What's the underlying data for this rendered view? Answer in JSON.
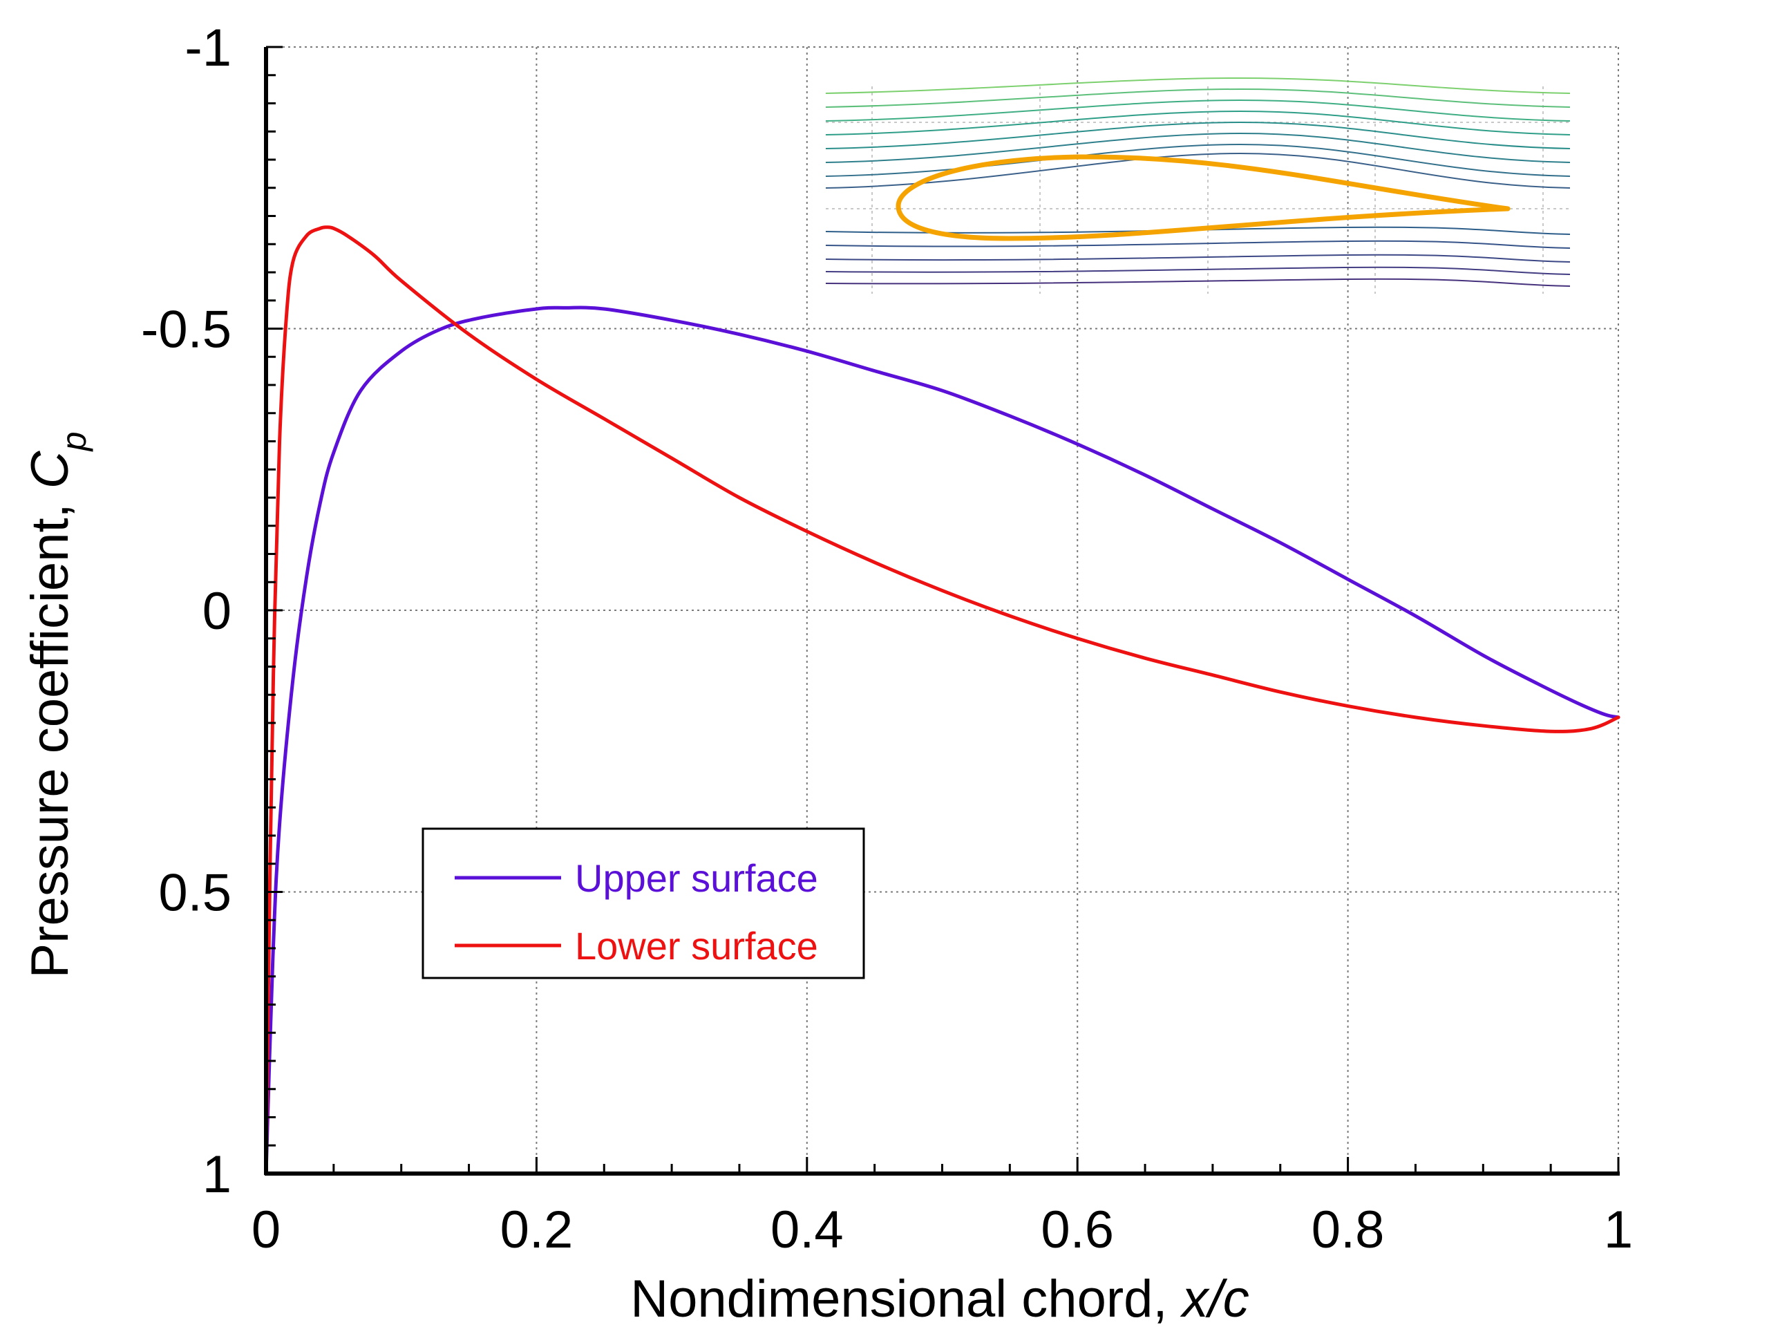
{
  "chart_data": {
    "type": "line",
    "title": "",
    "xlabel_main": "Nondimensional chord, ",
    "xlabel_italic": "x/c",
    "ylabel_main": "Pressure coefficient, ",
    "ylabel_symbol": "C",
    "ylabel_subscript": "p",
    "xlim": [
      0,
      1
    ],
    "ylim": [
      1,
      -1
    ],
    "y_axis_inverted": true,
    "grid": true,
    "legend_position": "lower-left",
    "x_ticks": [
      0,
      0.2,
      0.4,
      0.6,
      0.8,
      1
    ],
    "x_tick_labels": [
      "0",
      "0.2",
      "0.4",
      "0.6",
      "0.8",
      "1"
    ],
    "y_ticks": [
      -1,
      -0.5,
      0,
      0.5,
      1
    ],
    "y_tick_labels": [
      "-1",
      "-0.5",
      "0",
      "0.5",
      "1"
    ],
    "series": [
      {
        "name": "Upper surface",
        "color": "#5b10d8",
        "x": [
          0,
          0.005,
          0.01,
          0.02,
          0.03,
          0.04,
          0.05,
          0.07,
          0.1,
          0.13,
          0.16,
          0.2,
          0.22,
          0.25,
          0.3,
          0.35,
          0.4,
          0.45,
          0.5,
          0.55,
          0.6,
          0.65,
          0.7,
          0.75,
          0.8,
          0.85,
          0.9,
          0.94,
          0.97,
          0.99,
          1.0
        ],
        "y": [
          1.0,
          0.62,
          0.38,
          0.12,
          -0.06,
          -0.19,
          -0.28,
          -0.39,
          -0.46,
          -0.5,
          -0.52,
          -0.535,
          -0.537,
          -0.535,
          -0.515,
          -0.49,
          -0.46,
          -0.425,
          -0.39,
          -0.345,
          -0.295,
          -0.24,
          -0.18,
          -0.12,
          -0.055,
          0.01,
          0.08,
          0.13,
          0.165,
          0.185,
          0.19
        ]
      },
      {
        "name": "Lower surface",
        "color": "#ee1111",
        "x": [
          0,
          0.003,
          0.006,
          0.01,
          0.015,
          0.02,
          0.03,
          0.04,
          0.045,
          0.05,
          0.06,
          0.08,
          0.1,
          0.15,
          0.2,
          0.25,
          0.3,
          0.35,
          0.4,
          0.45,
          0.5,
          0.55,
          0.6,
          0.65,
          0.7,
          0.75,
          0.8,
          0.85,
          0.9,
          0.95,
          0.98,
          1.0
        ],
        "y": [
          1.0,
          0.45,
          0.05,
          -0.3,
          -0.52,
          -0.62,
          -0.665,
          -0.678,
          -0.68,
          -0.678,
          -0.665,
          -0.63,
          -0.585,
          -0.49,
          -0.41,
          -0.34,
          -0.27,
          -0.2,
          -0.14,
          -0.085,
          -0.035,
          0.01,
          0.05,
          0.085,
          0.115,
          0.145,
          0.17,
          0.19,
          0.205,
          0.215,
          0.21,
          0.19
        ]
      }
    ]
  }
}
